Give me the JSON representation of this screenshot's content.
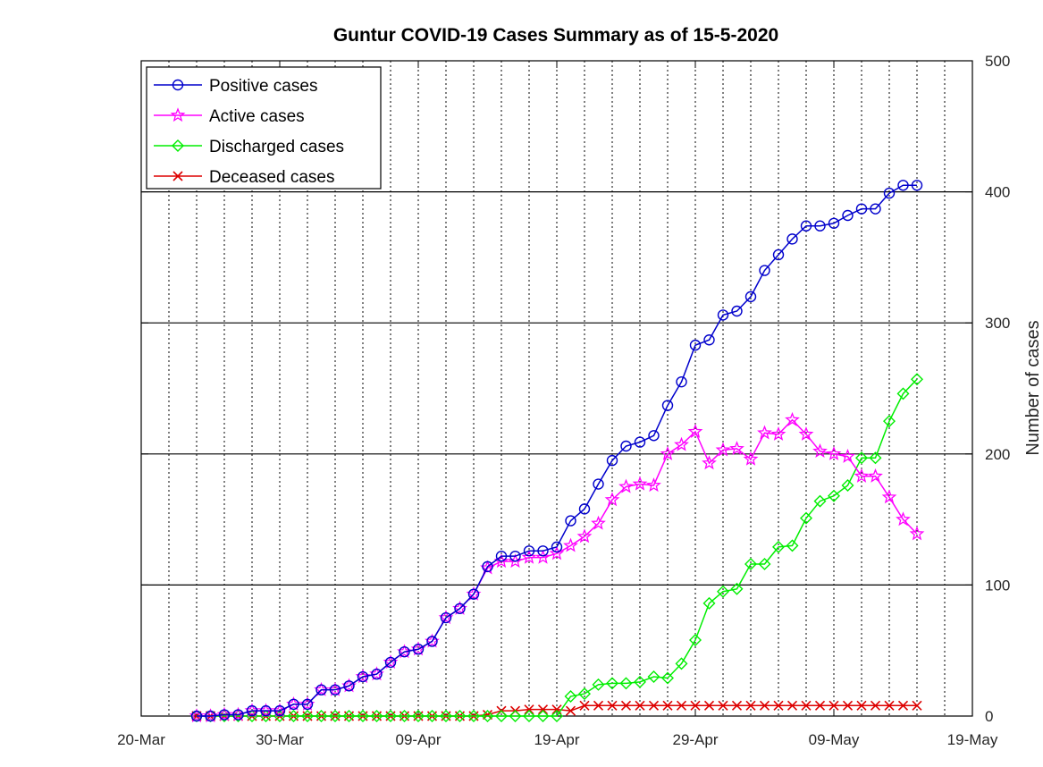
{
  "chart_data": {
    "type": "line",
    "title": "Guntur COVID-19 Cases Summary as of 15-5-2020",
    "ylabel": "Number of cases",
    "xlabel": "",
    "x_axis": {
      "type": "date",
      "range": [
        "2020-03-20",
        "2020-05-19"
      ],
      "ticks": [
        {
          "date": "2020-03-20",
          "label": "20-Mar"
        },
        {
          "date": "2020-03-30",
          "label": "30-Mar"
        },
        {
          "date": "2020-04-09",
          "label": "09-Apr"
        },
        {
          "date": "2020-04-19",
          "label": "19-Apr"
        },
        {
          "date": "2020-04-29",
          "label": "29-Apr"
        },
        {
          "date": "2020-05-09",
          "label": "09-May"
        },
        {
          "date": "2020-05-19",
          "label": "19-May"
        }
      ],
      "minor_grid": "every 2 days, dotted"
    },
    "y_axis": {
      "side": "right",
      "range": [
        0,
        500
      ],
      "ticks": [
        "0",
        "100",
        "200",
        "300",
        "400",
        "500"
      ],
      "grid": "major, solid"
    },
    "legend": {
      "position": "top-left"
    },
    "dates": [
      "2020-03-24",
      "2020-03-25",
      "2020-03-26",
      "2020-03-27",
      "2020-03-28",
      "2020-03-29",
      "2020-03-30",
      "2020-03-31",
      "2020-04-01",
      "2020-04-02",
      "2020-04-03",
      "2020-04-04",
      "2020-04-05",
      "2020-04-06",
      "2020-04-07",
      "2020-04-08",
      "2020-04-09",
      "2020-04-10",
      "2020-04-11",
      "2020-04-12",
      "2020-04-13",
      "2020-04-14",
      "2020-04-15",
      "2020-04-16",
      "2020-04-17",
      "2020-04-18",
      "2020-04-19",
      "2020-04-20",
      "2020-04-21",
      "2020-04-22",
      "2020-04-23",
      "2020-04-24",
      "2020-04-25",
      "2020-04-26",
      "2020-04-27",
      "2020-04-28",
      "2020-04-29",
      "2020-04-30",
      "2020-05-01",
      "2020-05-02",
      "2020-05-03",
      "2020-05-04",
      "2020-05-05",
      "2020-05-06",
      "2020-05-07",
      "2020-05-08",
      "2020-05-09",
      "2020-05-10",
      "2020-05-11",
      "2020-05-12",
      "2020-05-13",
      "2020-05-14",
      "2020-05-15"
    ],
    "series": [
      {
        "name": "Positive cases",
        "color": "#0000cc",
        "marker": "circle",
        "values": [
          0,
          0,
          1,
          1,
          4,
          4,
          4,
          9,
          9,
          20,
          20,
          23,
          30,
          32,
          41,
          49,
          51,
          57,
          75,
          82,
          93,
          114,
          122,
          122,
          126,
          126,
          129,
          149,
          158,
          177,
          195,
          206,
          209,
          214,
          237,
          255,
          283,
          287,
          306,
          309,
          320,
          340,
          352,
          364,
          374,
          374,
          376,
          382,
          387,
          387,
          399,
          405,
          405
        ]
      },
      {
        "name": "Active cases",
        "color": "#ff00ff",
        "marker": "star",
        "values": [
          0,
          0,
          1,
          1,
          4,
          4,
          4,
          9,
          9,
          20,
          20,
          23,
          30,
          32,
          41,
          49,
          51,
          57,
          75,
          82,
          93,
          113,
          118,
          118,
          121,
          121,
          124,
          130,
          137,
          147,
          165,
          175,
          177,
          176,
          200,
          207,
          217,
          193,
          203,
          204,
          196,
          216,
          215,
          226,
          215,
          202,
          200,
          198,
          183,
          183,
          167,
          150,
          139
        ]
      },
      {
        "name": "Discharged cases",
        "color": "#00ee00",
        "marker": "diamond",
        "values": [
          0,
          0,
          0,
          0,
          0,
          0,
          0,
          0,
          0,
          0,
          0,
          0,
          0,
          0,
          0,
          0,
          0,
          0,
          0,
          0,
          0,
          0,
          0,
          0,
          0,
          0,
          0,
          15,
          17,
          24,
          25,
          25,
          26,
          30,
          29,
          40,
          58,
          86,
          95,
          97,
          116,
          116,
          129,
          130,
          151,
          164,
          168,
          176,
          197,
          197,
          225,
          246,
          257
        ]
      },
      {
        "name": "Deceased cases",
        "color": "#dd0000",
        "marker": "x",
        "values": [
          0,
          0,
          0,
          0,
          0,
          0,
          0,
          0,
          0,
          0,
          0,
          0,
          0,
          0,
          0,
          0,
          0,
          0,
          0,
          0,
          0,
          1,
          4,
          4,
          5,
          5,
          5,
          4,
          8,
          8,
          8,
          8,
          8,
          8,
          8,
          8,
          8,
          8,
          8,
          8,
          8,
          8,
          8,
          8,
          8,
          8,
          8,
          8,
          8,
          8,
          8,
          8,
          8
        ]
      }
    ]
  }
}
